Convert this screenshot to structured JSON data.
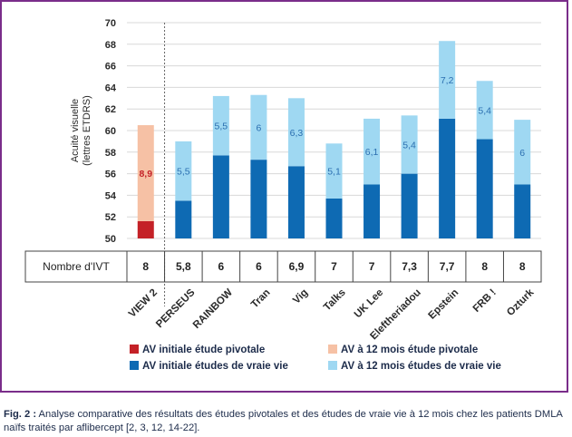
{
  "chart_data": {
    "type": "bar",
    "stacked": true,
    "ylabel": "Acuité visuelle (lettres ETDRS)",
    "ylabel_lines": [
      "Acuité visuelle",
      "(lettres ETDRS)"
    ],
    "ylim": [
      50,
      70
    ],
    "yticks": [
      50,
      52,
      54,
      56,
      58,
      60,
      62,
      64,
      66,
      68,
      70
    ],
    "grid": true,
    "categories": [
      "VIEW 2",
      "PERSEUS",
      "RAINBOW",
      "Tran",
      "Vig",
      "Talks",
      "UK Lee",
      "Eleftheriadou",
      "Epstein",
      "FRB !",
      "Ozturk"
    ],
    "baseline": [
      51.6,
      53.5,
      57.7,
      57.3,
      56.7,
      53.7,
      55.0,
      56.0,
      61.1,
      59.2,
      55.0
    ],
    "gain": [
      8.9,
      5.5,
      5.5,
      6,
      6.3,
      5.1,
      6.1,
      5.4,
      7.2,
      5.4,
      6
    ],
    "gain_labels": [
      "8,9",
      "5,5",
      "5,5",
      "6",
      "6,3",
      "5,1",
      "6,1",
      "5,4",
      "7,2",
      "5,4",
      "6"
    ],
    "pivotal_count": 1,
    "colors": {
      "pivotal_initial": "#c42127",
      "pivotal_12m": "#f6c1a5",
      "real_initial": "#0e6ab3",
      "real_12m": "#9fd8f2",
      "pivotal_label": "#c42127",
      "real_label": "#2b6fb0",
      "grid": "#d8d8d8",
      "axis_text": "#2a2a2a"
    },
    "table": {
      "header": "Nombre d'IVT",
      "values": [
        "8",
        "5,8",
        "6",
        "6",
        "6,9",
        "7",
        "7",
        "7,3",
        "7,7",
        "8",
        "8"
      ]
    },
    "legend": [
      {
        "label": "AV initiale étude pivotale",
        "color_key": "pivotal_initial"
      },
      {
        "label": "AV à 12 mois étude pivotale",
        "color_key": "pivotal_12m"
      },
      {
        "label": "AV initiale études de vraie vie",
        "color_key": "real_initial"
      },
      {
        "label": "AV à 12 mois études de vraie vie",
        "color_key": "real_12m"
      }
    ]
  },
  "caption": {
    "fig_label": "Fig. 2 :",
    "text": " Analyse comparative des résultats des études pivotales et des études de vraie vie à 12 mois chez les patients DMLA naïfs traités par aflibercept [2, 3, 12, 14-22]."
  }
}
